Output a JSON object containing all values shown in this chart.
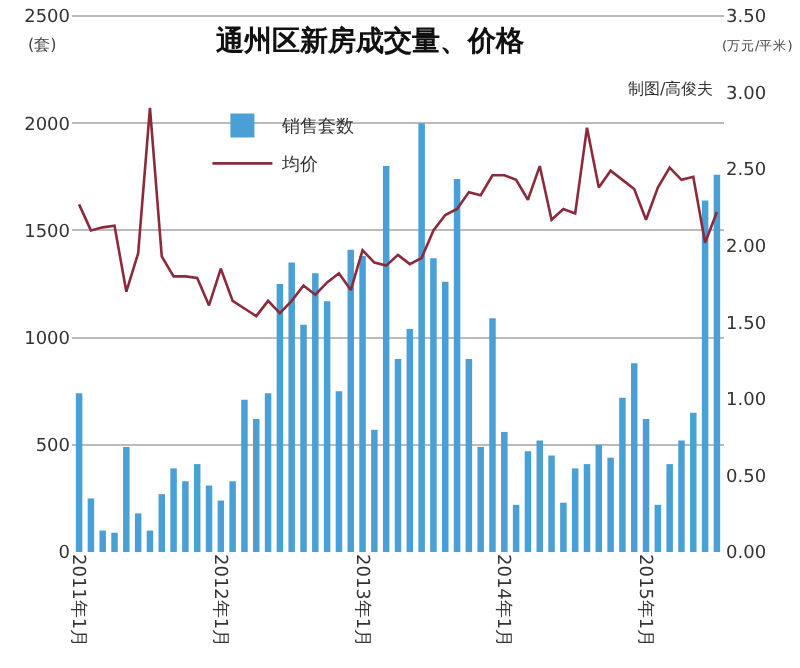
{
  "chart_data": {
    "type": "bar",
    "title": "通州区新房成交量、价格",
    "ylabel": "(套)",
    "y2label": "(万元/平米)",
    "annotations": [
      "制图/高俊夫"
    ],
    "categories": [
      "2011年1月",
      null,
      null,
      null,
      null,
      null,
      null,
      null,
      null,
      null,
      null,
      null,
      "2012年1月",
      null,
      null,
      null,
      null,
      null,
      null,
      null,
      null,
      null,
      null,
      null,
      "2013年1月",
      null,
      null,
      null,
      null,
      null,
      null,
      null,
      null,
      null,
      null,
      null,
      "2014年1月",
      null,
      null,
      null,
      null,
      null,
      null,
      null,
      null,
      null,
      null,
      null,
      "2015年1月",
      null,
      null,
      null,
      null,
      null,
      null
    ],
    "series": [
      {
        "name": "销售套数",
        "color": "#4a9fd4",
        "values": [
          740,
          250,
          100,
          90,
          490,
          180,
          100,
          270,
          390,
          330,
          410,
          310,
          240,
          330,
          710,
          620,
          740,
          1250,
          1350,
          1060,
          1300,
          1170,
          750,
          1410,
          1380,
          570,
          1800,
          900,
          1040,
          2000,
          1370,
          1260,
          1740,
          900,
          490,
          1090,
          560,
          220,
          470,
          520,
          450,
          230,
          390,
          410,
          500,
          440,
          720,
          880,
          620,
          220,
          410,
          520,
          650,
          1640,
          1760
        ]
      },
      {
        "name": "均价",
        "type": "line",
        "axis": "y2",
        "color": "#8b2a3a",
        "values": [
          2.27,
          2.1,
          2.12,
          2.13,
          1.7,
          1.95,
          2.9,
          1.93,
          1.8,
          1.8,
          1.79,
          1.61,
          1.85,
          1.64,
          1.59,
          1.54,
          1.64,
          1.56,
          1.64,
          1.74,
          1.68,
          1.76,
          1.82,
          1.71,
          1.97,
          1.89,
          1.87,
          1.94,
          1.88,
          1.92,
          2.1,
          2.2,
          2.24,
          2.35,
          2.33,
          2.46,
          2.46,
          2.43,
          2.3,
          2.52,
          2.17,
          2.24,
          2.21,
          2.77,
          2.38,
          2.49,
          2.43,
          2.37,
          2.17,
          2.38,
          2.51,
          2.43,
          2.45,
          2.02,
          2.22
        ]
      }
    ],
    "ylim": [
      0,
      2500
    ],
    "yticks": [
      0,
      500,
      1000,
      1500,
      2000,
      2500
    ],
    "y2lim": [
      0,
      3.5
    ],
    "y2ticks": [
      {
        "value": 0,
        "label": "0.00"
      },
      {
        "value": 0.5,
        "label": "0.50"
      },
      {
        "value": 1,
        "label": "1.00"
      },
      {
        "value": 1.5,
        "label": "1.50"
      },
      {
        "value": 2,
        "label": "2.00"
      },
      {
        "value": 2.5,
        "label": "2.50"
      },
      {
        "value": 3,
        "label": "3.00"
      },
      {
        "value": 3.5,
        "label": "3.50"
      }
    ],
    "grid": "y",
    "legend": "top left",
    "marker": "none",
    "line_style": "solid"
  }
}
